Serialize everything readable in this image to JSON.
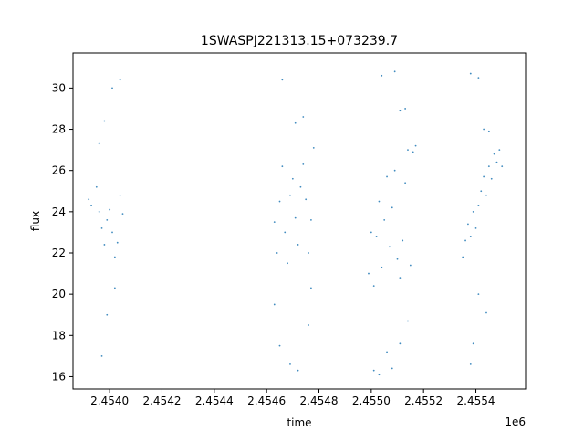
{
  "chart_data": {
    "type": "scatter",
    "title": "1SWASPJ221313.15+073239.7",
    "xlabel": "time",
    "ylabel": "flux",
    "x_offset_label": "1e6",
    "xlim": [
      2.45386,
      2.45559
    ],
    "ylim": [
      15.4,
      31.7
    ],
    "xticks": [
      2.454,
      2.4542,
      2.4544,
      2.4546,
      2.4548,
      2.455,
      2.4552,
      2.4554
    ],
    "xtick_labels": [
      "2.4540",
      "2.4542",
      "2.4544",
      "2.4546",
      "2.4548",
      "2.4550",
      "2.4552",
      "2.4554"
    ],
    "yticks": [
      16,
      18,
      20,
      22,
      24,
      26,
      28,
      30
    ],
    "ytick_labels": [
      "16",
      "18",
      "20",
      "22",
      "24",
      "26",
      "28",
      "30"
    ],
    "grid": false,
    "point_color": "#1f77b4",
    "series": [
      {
        "points": [
          [
            2.45392,
            24.6
          ],
          [
            2.45393,
            24.3
          ],
          [
            2.45395,
            25.2
          ],
          [
            2.45396,
            24.0
          ],
          [
            2.45397,
            23.2
          ],
          [
            2.45398,
            22.4
          ],
          [
            2.45399,
            23.6
          ],
          [
            2.454,
            24.1
          ],
          [
            2.45401,
            23.0
          ],
          [
            2.45402,
            21.8
          ],
          [
            2.45403,
            22.5
          ],
          [
            2.45404,
            24.8
          ],
          [
            2.45405,
            23.9
          ],
          [
            2.45396,
            27.3
          ],
          [
            2.45398,
            28.4
          ],
          [
            2.45401,
            30.0
          ],
          [
            2.45404,
            30.4
          ],
          [
            2.45399,
            19.0
          ],
          [
            2.45397,
            17.0
          ],
          [
            2.45402,
            20.3
          ],
          [
            2.45463,
            23.5
          ],
          [
            2.45464,
            22.0
          ],
          [
            2.45465,
            24.5
          ],
          [
            2.45466,
            26.2
          ],
          [
            2.45467,
            23.0
          ],
          [
            2.45468,
            21.5
          ],
          [
            2.45469,
            24.8
          ],
          [
            2.4547,
            25.6
          ],
          [
            2.45471,
            23.7
          ],
          [
            2.45472,
            22.4
          ],
          [
            2.45473,
            25.2
          ],
          [
            2.45474,
            26.3
          ],
          [
            2.45475,
            24.6
          ],
          [
            2.45476,
            22.0
          ],
          [
            2.45477,
            23.6
          ],
          [
            2.45478,
            27.1
          ],
          [
            2.45466,
            30.4
          ],
          [
            2.45471,
            28.3
          ],
          [
            2.45474,
            28.6
          ],
          [
            2.45463,
            19.5
          ],
          [
            2.45465,
            17.5
          ],
          [
            2.45469,
            16.6
          ],
          [
            2.45472,
            16.3
          ],
          [
            2.45476,
            18.5
          ],
          [
            2.45477,
            20.3
          ],
          [
            2.45499,
            21.0
          ],
          [
            2.455,
            23.0
          ],
          [
            2.45501,
            20.4
          ],
          [
            2.45502,
            22.8
          ],
          [
            2.45503,
            24.5
          ],
          [
            2.45504,
            21.3
          ],
          [
            2.45505,
            23.6
          ],
          [
            2.45506,
            25.7
          ],
          [
            2.45507,
            22.3
          ],
          [
            2.45508,
            24.2
          ],
          [
            2.45509,
            26.0
          ],
          [
            2.4551,
            21.7
          ],
          [
            2.45511,
            20.8
          ],
          [
            2.45512,
            22.6
          ],
          [
            2.45513,
            25.4
          ],
          [
            2.45514,
            27.0
          ],
          [
            2.45515,
            21.4
          ],
          [
            2.45516,
            26.9
          ],
          [
            2.45517,
            27.2
          ],
          [
            2.45504,
            30.6
          ],
          [
            2.45509,
            30.8
          ],
          [
            2.45511,
            28.9
          ],
          [
            2.45513,
            29.0
          ],
          [
            2.45501,
            16.3
          ],
          [
            2.45503,
            16.1
          ],
          [
            2.45506,
            17.2
          ],
          [
            2.45508,
            16.4
          ],
          [
            2.45511,
            17.6
          ],
          [
            2.45514,
            18.7
          ],
          [
            2.45535,
            21.8
          ],
          [
            2.45536,
            22.6
          ],
          [
            2.45537,
            23.4
          ],
          [
            2.45538,
            22.8
          ],
          [
            2.45539,
            24.0
          ],
          [
            2.4554,
            23.2
          ],
          [
            2.45541,
            24.3
          ],
          [
            2.45542,
            25.0
          ],
          [
            2.45543,
            25.7
          ],
          [
            2.45544,
            24.8
          ],
          [
            2.45545,
            26.2
          ],
          [
            2.45546,
            25.6
          ],
          [
            2.45547,
            26.8
          ],
          [
            2.45548,
            26.4
          ],
          [
            2.45549,
            27.0
          ],
          [
            2.4555,
            26.2
          ],
          [
            2.45538,
            30.7
          ],
          [
            2.45541,
            30.5
          ],
          [
            2.45543,
            28.0
          ],
          [
            2.45545,
            27.9
          ],
          [
            2.45539,
            17.6
          ],
          [
            2.45538,
            16.6
          ],
          [
            2.45541,
            20.0
          ],
          [
            2.45544,
            19.1
          ]
        ]
      }
    ]
  }
}
